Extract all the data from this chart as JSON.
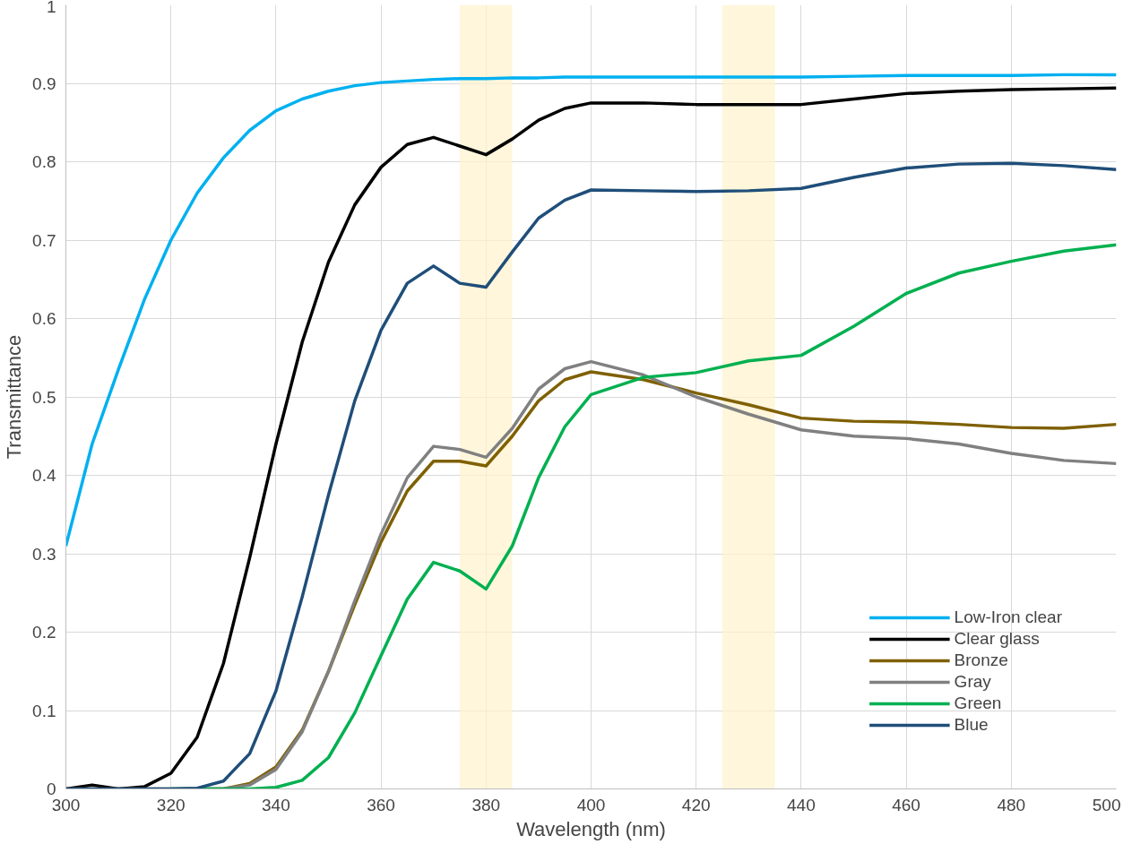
{
  "chart_data": {
    "type": "line",
    "xlabel": "Wavelength (nm)",
    "ylabel": "Transmittance",
    "x": [
      300,
      305,
      310,
      315,
      320,
      325,
      330,
      335,
      340,
      345,
      350,
      355,
      360,
      365,
      370,
      375,
      380,
      385,
      390,
      395,
      400,
      410,
      420,
      430,
      440,
      450,
      460,
      470,
      480,
      490,
      500
    ],
    "series": [
      {
        "name": "Low-Iron clear",
        "color": "#00b0f0",
        "values": [
          0.31,
          0.44,
          0.535,
          0.625,
          0.7,
          0.76,
          0.805,
          0.84,
          0.865,
          0.88,
          0.89,
          0.897,
          0.901,
          0.903,
          0.905,
          0.906,
          0.906,
          0.907,
          0.907,
          0.908,
          0.908,
          0.908,
          0.908,
          0.908,
          0.908,
          0.909,
          0.91,
          0.91,
          0.91,
          0.911,
          0.911
        ]
      },
      {
        "name": "Clear glass",
        "color": "#000000",
        "values": [
          0,
          0.005,
          0,
          0.003,
          0.02,
          0.066,
          0.16,
          0.295,
          0.44,
          0.57,
          0.672,
          0.745,
          0.793,
          0.822,
          0.831,
          0.82,
          0.809,
          0.829,
          0.853,
          0.868,
          0.875,
          0.875,
          0.873,
          0.873,
          0.873,
          0.88,
          0.887,
          0.89,
          0.892,
          0.893,
          0.894
        ]
      },
      {
        "name": "Bronze",
        "color": "#7f6000",
        "values": [
          null,
          null,
          null,
          null,
          null,
          0,
          0,
          0.007,
          0.028,
          0.075,
          0.15,
          0.235,
          0.315,
          0.38,
          0.418,
          0.418,
          0.412,
          0.45,
          0.495,
          0.522,
          0.532,
          0.522,
          0.505,
          0.49,
          0.473,
          0.469,
          0.468,
          0.465,
          0.461,
          0.46,
          0.465
        ]
      },
      {
        "name": "Gray",
        "color": "#808080",
        "values": [
          0,
          0,
          0,
          0,
          0,
          0,
          0,
          0.005,
          0.025,
          0.073,
          0.15,
          0.24,
          0.325,
          0.397,
          0.437,
          0.433,
          0.423,
          0.46,
          0.51,
          0.536,
          0.545,
          0.528,
          0.5,
          0.478,
          0.458,
          0.45,
          0.447,
          0.44,
          0.428,
          0.419,
          0.415
        ]
      },
      {
        "name": "Green",
        "color": "#00b050",
        "values": [
          null,
          null,
          null,
          null,
          0,
          0,
          0,
          0,
          0.002,
          0.011,
          0.04,
          0.097,
          0.17,
          0.242,
          0.289,
          0.278,
          0.255,
          0.31,
          0.397,
          0.462,
          0.503,
          0.525,
          0.531,
          0.546,
          0.553,
          0.59,
          0.632,
          0.658,
          0.673,
          0.686,
          0.694
        ]
      },
      {
        "name": "Blue",
        "color": "#1f4e79",
        "values": [
          0,
          0,
          0,
          0,
          0,
          0.001,
          0.01,
          0.045,
          0.125,
          0.245,
          0.375,
          0.495,
          0.585,
          0.645,
          0.667,
          0.645,
          0.64,
          0.685,
          0.728,
          0.751,
          0.764,
          0.763,
          0.762,
          0.763,
          0.766,
          0.78,
          0.792,
          0.797,
          0.798,
          0.795,
          0.79
        ]
      }
    ],
    "xlim": [
      300,
      500
    ],
    "xticks": [
      300,
      320,
      340,
      360,
      380,
      400,
      420,
      440,
      460,
      480,
      500
    ],
    "ylim": [
      0,
      1
    ],
    "yticks": [
      0,
      0.1,
      0.2,
      0.3,
      0.4,
      0.5,
      0.6,
      0.7,
      0.8,
      0.9,
      1
    ],
    "bands": [
      {
        "axis": "x",
        "from": 375,
        "to": 385,
        "color": "#fff2cc"
      },
      {
        "axis": "x",
        "from": 425,
        "to": 435,
        "color": "#fff2cc"
      }
    ],
    "grid": true,
    "legend": "bottom right",
    "marker": "none",
    "line_style": "solid"
  }
}
